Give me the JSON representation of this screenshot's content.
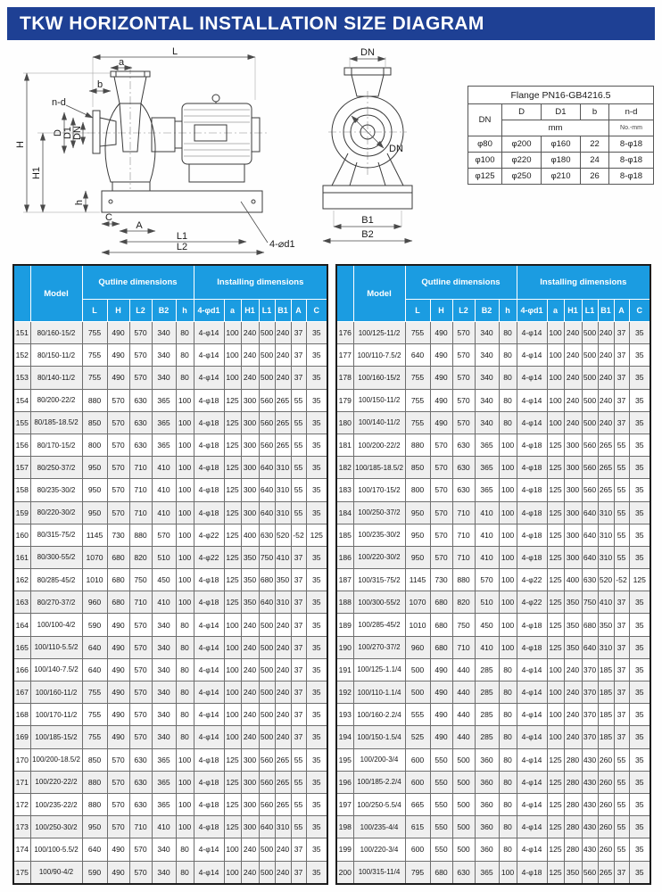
{
  "colors": {
    "banner_blue": "#1e4094",
    "table_header_blue": "#1b9ce1",
    "row_stripe_gray": "#efefef"
  },
  "banner": {
    "title": "TKW  HORIZONTAL INSTALLATION SIZE DIAGRAM"
  },
  "drawing": {
    "side_labels": {
      "L": "L",
      "a": "a",
      "b": "b",
      "nd": "n-d",
      "H": "H",
      "D": "D",
      "D1": "D1",
      "DN": "DN",
      "H1": "H1",
      "h": "h",
      "C": "C",
      "A": "A",
      "L1": "L1",
      "L2": "L2",
      "d1": "4-⌀d1"
    },
    "front_labels": {
      "DN_top": "DN",
      "DN_diag": "DN",
      "B1": "B1",
      "B2": "B2"
    }
  },
  "flange_table": {
    "title": "Flange PN16-GB4216.5",
    "dn_label": "DN",
    "cols": [
      "D",
      "D1",
      "b",
      "n-d"
    ],
    "unit_mm": "mm",
    "unit_nd": "No.-mm",
    "rows": [
      [
        "φ80",
        "φ200",
        "φ160",
        "22",
        "8-φ18"
      ],
      [
        "φ100",
        "φ220",
        "φ180",
        "24",
        "8-φ18"
      ],
      [
        "φ125",
        "φ250",
        "φ210",
        "26",
        "8-φ18"
      ]
    ]
  },
  "main_table": {
    "model_label": "Model",
    "outline_label": "Qutline dimensions",
    "installing_label": "Installing dimensions",
    "sub_cols": [
      "L",
      "H",
      "L2",
      "B2",
      "h",
      "4-φd1",
      "a",
      "H1",
      "L1",
      "B1",
      "A",
      "C"
    ],
    "left_rows": [
      [
        "151",
        "80/160-15/2",
        "755",
        "490",
        "570",
        "340",
        "80",
        "4-φ14",
        "100",
        "240",
        "500",
        "240",
        "37",
        "35"
      ],
      [
        "152",
        "80/150-11/2",
        "755",
        "490",
        "570",
        "340",
        "80",
        "4-φ14",
        "100",
        "240",
        "500",
        "240",
        "37",
        "35"
      ],
      [
        "153",
        "80/140-11/2",
        "755",
        "490",
        "570",
        "340",
        "80",
        "4-φ14",
        "100",
        "240",
        "500",
        "240",
        "37",
        "35"
      ],
      [
        "154",
        "80/200-22/2",
        "880",
        "570",
        "630",
        "365",
        "100",
        "4-φ18",
        "125",
        "300",
        "560",
        "265",
        "55",
        "35"
      ],
      [
        "155",
        "80/185-18.5/2",
        "850",
        "570",
        "630",
        "365",
        "100",
        "4-φ18",
        "125",
        "300",
        "560",
        "265",
        "55",
        "35"
      ],
      [
        "156",
        "80/170-15/2",
        "800",
        "570",
        "630",
        "365",
        "100",
        "4-φ18",
        "125",
        "300",
        "560",
        "265",
        "55",
        "35"
      ],
      [
        "157",
        "80/250-37/2",
        "950",
        "570",
        "710",
        "410",
        "100",
        "4-φ18",
        "125",
        "300",
        "640",
        "310",
        "55",
        "35"
      ],
      [
        "158",
        "80/235-30/2",
        "950",
        "570",
        "710",
        "410",
        "100",
        "4-φ18",
        "125",
        "300",
        "640",
        "310",
        "55",
        "35"
      ],
      [
        "159",
        "80/220-30/2",
        "950",
        "570",
        "710",
        "410",
        "100",
        "4-φ18",
        "125",
        "300",
        "640",
        "310",
        "55",
        "35"
      ],
      [
        "160",
        "80/315-75/2",
        "1145",
        "730",
        "880",
        "570",
        "100",
        "4-φ22",
        "125",
        "400",
        "630",
        "520",
        "-52",
        "125"
      ],
      [
        "161",
        "80/300-55/2",
        "1070",
        "680",
        "820",
        "510",
        "100",
        "4-φ22",
        "125",
        "350",
        "750",
        "410",
        "37",
        "35"
      ],
      [
        "162",
        "80/285-45/2",
        "1010",
        "680",
        "750",
        "450",
        "100",
        "4-φ18",
        "125",
        "350",
        "680",
        "350",
        "37",
        "35"
      ],
      [
        "163",
        "80/270-37/2",
        "960",
        "680",
        "710",
        "410",
        "100",
        "4-φ18",
        "125",
        "350",
        "640",
        "310",
        "37",
        "35"
      ],
      [
        "164",
        "100/100-4/2",
        "590",
        "490",
        "570",
        "340",
        "80",
        "4-φ14",
        "100",
        "240",
        "500",
        "240",
        "37",
        "35"
      ],
      [
        "165",
        "100/110-5.5/2",
        "640",
        "490",
        "570",
        "340",
        "80",
        "4-φ14",
        "100",
        "240",
        "500",
        "240",
        "37",
        "35"
      ],
      [
        "166",
        "100/140-7.5/2",
        "640",
        "490",
        "570",
        "340",
        "80",
        "4-φ14",
        "100",
        "240",
        "500",
        "240",
        "37",
        "35"
      ],
      [
        "167",
        "100/160-11/2",
        "755",
        "490",
        "570",
        "340",
        "80",
        "4-φ14",
        "100",
        "240",
        "500",
        "240",
        "37",
        "35"
      ],
      [
        "168",
        "100/170-11/2",
        "755",
        "490",
        "570",
        "340",
        "80",
        "4-φ14",
        "100",
        "240",
        "500",
        "240",
        "37",
        "35"
      ],
      [
        "169",
        "100/185-15/2",
        "755",
        "490",
        "570",
        "340",
        "80",
        "4-φ14",
        "100",
        "240",
        "500",
        "240",
        "37",
        "35"
      ],
      [
        "170",
        "100/200-18.5/2",
        "850",
        "570",
        "630",
        "365",
        "100",
        "4-φ18",
        "125",
        "300",
        "560",
        "265",
        "55",
        "35"
      ],
      [
        "171",
        "100/220-22/2",
        "880",
        "570",
        "630",
        "365",
        "100",
        "4-φ18",
        "125",
        "300",
        "560",
        "265",
        "55",
        "35"
      ],
      [
        "172",
        "100/235-22/2",
        "880",
        "570",
        "630",
        "365",
        "100",
        "4-φ18",
        "125",
        "300",
        "560",
        "265",
        "55",
        "35"
      ],
      [
        "173",
        "100/250-30/2",
        "950",
        "570",
        "710",
        "410",
        "100",
        "4-φ18",
        "125",
        "300",
        "640",
        "310",
        "55",
        "35"
      ],
      [
        "174",
        "100/100-5.5/2",
        "640",
        "490",
        "570",
        "340",
        "80",
        "4-φ14",
        "100",
        "240",
        "500",
        "240",
        "37",
        "35"
      ],
      [
        "175",
        "100/90-4/2",
        "590",
        "490",
        "570",
        "340",
        "80",
        "4-φ14",
        "100",
        "240",
        "500",
        "240",
        "37",
        "35"
      ]
    ],
    "right_rows": [
      [
        "176",
        "100/125-11/2",
        "755",
        "490",
        "570",
        "340",
        "80",
        "4-φ14",
        "100",
        "240",
        "500",
        "240",
        "37",
        "35"
      ],
      [
        "177",
        "100/110-7.5/2",
        "640",
        "490",
        "570",
        "340",
        "80",
        "4-φ14",
        "100",
        "240",
        "500",
        "240",
        "37",
        "35"
      ],
      [
        "178",
        "100/160-15/2",
        "755",
        "490",
        "570",
        "340",
        "80",
        "4-φ14",
        "100",
        "240",
        "500",
        "240",
        "37",
        "35"
      ],
      [
        "179",
        "100/150-11/2",
        "755",
        "490",
        "570",
        "340",
        "80",
        "4-φ14",
        "100",
        "240",
        "500",
        "240",
        "37",
        "35"
      ],
      [
        "180",
        "100/140-11/2",
        "755",
        "490",
        "570",
        "340",
        "80",
        "4-φ14",
        "100",
        "240",
        "500",
        "240",
        "37",
        "35"
      ],
      [
        "181",
        "100/200-22/2",
        "880",
        "570",
        "630",
        "365",
        "100",
        "4-φ18",
        "125",
        "300",
        "560",
        "265",
        "55",
        "35"
      ],
      [
        "182",
        "100/185-18.5/2",
        "850",
        "570",
        "630",
        "365",
        "100",
        "4-φ18",
        "125",
        "300",
        "560",
        "265",
        "55",
        "35"
      ],
      [
        "183",
        "100/170-15/2",
        "800",
        "570",
        "630",
        "365",
        "100",
        "4-φ18",
        "125",
        "300",
        "560",
        "265",
        "55",
        "35"
      ],
      [
        "184",
        "100/250-37/2",
        "950",
        "570",
        "710",
        "410",
        "100",
        "4-φ18",
        "125",
        "300",
        "640",
        "310",
        "55",
        "35"
      ],
      [
        "185",
        "100/235-30/2",
        "950",
        "570",
        "710",
        "410",
        "100",
        "4-φ18",
        "125",
        "300",
        "640",
        "310",
        "55",
        "35"
      ],
      [
        "186",
        "100/220-30/2",
        "950",
        "570",
        "710",
        "410",
        "100",
        "4-φ18",
        "125",
        "300",
        "640",
        "310",
        "55",
        "35"
      ],
      [
        "187",
        "100/315-75/2",
        "1145",
        "730",
        "880",
        "570",
        "100",
        "4-φ22",
        "125",
        "400",
        "630",
        "520",
        "-52",
        "125"
      ],
      [
        "188",
        "100/300-55/2",
        "1070",
        "680",
        "820",
        "510",
        "100",
        "4-φ22",
        "125",
        "350",
        "750",
        "410",
        "37",
        "35"
      ],
      [
        "189",
        "100/285-45/2",
        "1010",
        "680",
        "750",
        "450",
        "100",
        "4-φ18",
        "125",
        "350",
        "680",
        "350",
        "37",
        "35"
      ],
      [
        "190",
        "100/270-37/2",
        "960",
        "680",
        "710",
        "410",
        "100",
        "4-φ18",
        "125",
        "350",
        "640",
        "310",
        "37",
        "35"
      ],
      [
        "191",
        "100/125-1.1/4",
        "500",
        "490",
        "440",
        "285",
        "80",
        "4-φ14",
        "100",
        "240",
        "370",
        "185",
        "37",
        "35"
      ],
      [
        "192",
        "100/110-1.1/4",
        "500",
        "490",
        "440",
        "285",
        "80",
        "4-φ14",
        "100",
        "240",
        "370",
        "185",
        "37",
        "35"
      ],
      [
        "193",
        "100/160-2.2/4",
        "555",
        "490",
        "440",
        "285",
        "80",
        "4-φ14",
        "100",
        "240",
        "370",
        "185",
        "37",
        "35"
      ],
      [
        "194",
        "100/150-1.5/4",
        "525",
        "490",
        "440",
        "285",
        "80",
        "4-φ14",
        "100",
        "240",
        "370",
        "185",
        "37",
        "35"
      ],
      [
        "195",
        "100/200-3/4",
        "600",
        "550",
        "500",
        "360",
        "80",
        "4-φ14",
        "125",
        "280",
        "430",
        "260",
        "55",
        "35"
      ],
      [
        "196",
        "100/185-2.2/4",
        "600",
        "550",
        "500",
        "360",
        "80",
        "4-φ14",
        "125",
        "280",
        "430",
        "260",
        "55",
        "35"
      ],
      [
        "197",
        "100/250-5.5/4",
        "665",
        "550",
        "500",
        "360",
        "80",
        "4-φ14",
        "125",
        "280",
        "430",
        "260",
        "55",
        "35"
      ],
      [
        "198",
        "100/235-4/4",
        "615",
        "550",
        "500",
        "360",
        "80",
        "4-φ14",
        "125",
        "280",
        "430",
        "260",
        "55",
        "35"
      ],
      [
        "199",
        "100/220-3/4",
        "600",
        "550",
        "500",
        "360",
        "80",
        "4-φ14",
        "125",
        "280",
        "430",
        "260",
        "55",
        "35"
      ],
      [
        "200",
        "100/315-11/4",
        "795",
        "680",
        "630",
        "365",
        "100",
        "4-φ18",
        "125",
        "350",
        "560",
        "265",
        "37",
        "35"
      ]
    ]
  }
}
